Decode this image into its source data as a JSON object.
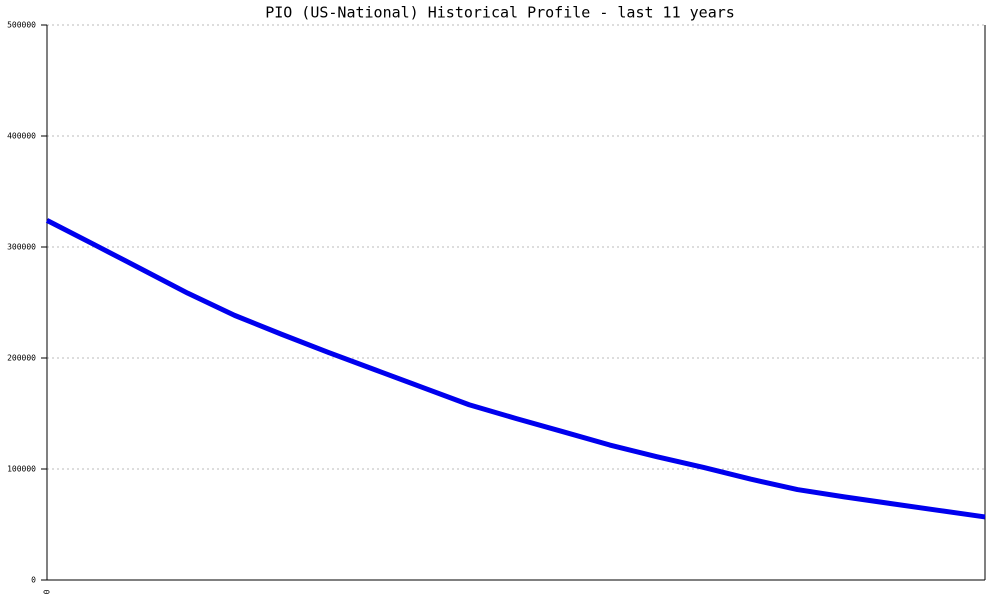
{
  "chart_data": {
    "type": "line",
    "title": "PIO (US-National) Historical Profile - last 11 years",
    "categories": [
      "0",
      null,
      null,
      null,
      null,
      null,
      null,
      null,
      null,
      null,
      null,
      null,
      null,
      null,
      null,
      null,
      null,
      null,
      null,
      null,
      null
    ],
    "series": [
      {
        "color": "#0000ee",
        "values": [
          324000,
          302300,
          280400,
          258400,
          238400,
          221400,
          205000,
          189300,
          173600,
          157900,
          145500,
          133600,
          121600,
          111100,
          101400,
          90900,
          81500,
          74900,
          68800,
          62800,
          56800
        ]
      }
    ],
    "ylim": [
      0,
      500000
    ],
    "yticks": [
      0,
      100000,
      200000,
      300000,
      400000,
      500000
    ],
    "grid": true
  }
}
